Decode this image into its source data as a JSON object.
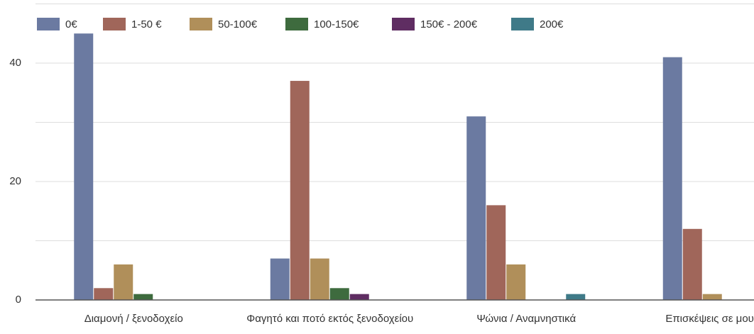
{
  "chart_data": {
    "type": "bar",
    "categories": [
      "Διαμονή / ξενοδοχείο",
      "Φαγητό και ποτό εκτός ξενοδοχείου",
      "Ψώνια / Αναμνηστικά",
      "Επισκέψεις σε μουσεία /"
    ],
    "series": [
      {
        "name": "0€",
        "color": "#6b7aa1",
        "values": [
          45,
          7,
          31,
          41
        ]
      },
      {
        "name": "1-50 €",
        "color": "#a0665a",
        "values": [
          2,
          37,
          16,
          12
        ]
      },
      {
        "name": "50-100€",
        "color": "#b08f5a",
        "values": [
          6,
          7,
          6,
          1
        ]
      },
      {
        "name": "100-150€",
        "color": "#3e6b3e",
        "values": [
          1,
          2,
          0,
          0
        ]
      },
      {
        "name": "150€ - 200€",
        "color": "#5f2d62",
        "values": [
          0,
          1,
          0,
          0
        ]
      },
      {
        "name": "200€",
        "color": "#3f7a88",
        "values": [
          0,
          0,
          1,
          0
        ]
      }
    ],
    "ylim": [
      0,
      50
    ],
    "yticks": [
      0,
      20,
      40
    ],
    "ygrid": [
      0,
      10,
      20,
      30,
      40,
      50
    ],
    "grid": true,
    "legend": "top"
  }
}
